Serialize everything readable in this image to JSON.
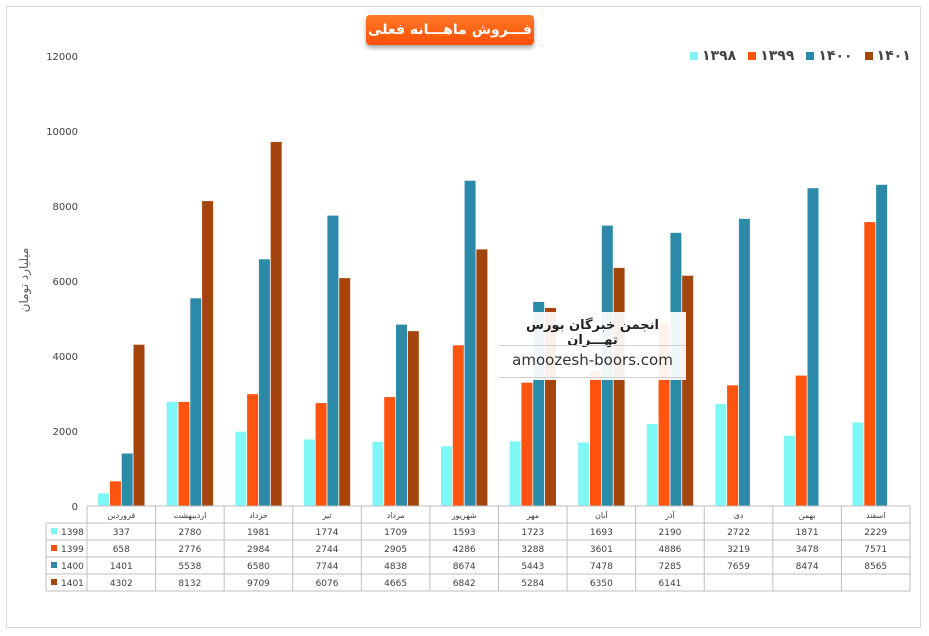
{
  "chart_data": {
    "type": "bar",
    "title": "فـــروش ماهـــانه فعلی",
    "ylabel": "میلیارد تومان",
    "ylim": [
      0,
      12000
    ],
    "yticks": [
      0,
      2000,
      4000,
      6000,
      8000,
      10000,
      12000
    ],
    "grid": false,
    "legend_placement": "top-right",
    "categories": [
      "فروردین",
      "اردیبهشت",
      "خرداد",
      "تیر",
      "مرداد",
      "شهریور",
      "مهر",
      "آبان",
      "آذر",
      "دی",
      "بهمن",
      "اسفند"
    ],
    "series": [
      {
        "name": "1398",
        "legend_label": "۱۳۹۸",
        "color": "#7ff7f7",
        "values": [
          337,
          2780,
          1981,
          1774,
          1709,
          1593,
          1723,
          1693,
          2190,
          2722,
          1871,
          2229
        ]
      },
      {
        "name": "1399",
        "legend_label": "۱۳۹۹",
        "color": "#ff5410",
        "values": [
          658,
          2776,
          2984,
          2744,
          2905,
          4286,
          3288,
          3601,
          4886,
          3219,
          3478,
          7571
        ]
      },
      {
        "name": "1400",
        "legend_label": "۱۴۰۰",
        "color": "#2a8aa8",
        "values": [
          1401,
          5538,
          6580,
          7744,
          4838,
          8674,
          5443,
          7478,
          7285,
          7659,
          8474,
          8565
        ]
      },
      {
        "name": "1401",
        "legend_label": "۱۴۰۱",
        "color": "#a3450d",
        "values": [
          4302,
          8132,
          9709,
          6076,
          4665,
          6842,
          5284,
          6350,
          6141,
          null,
          null,
          null
        ]
      }
    ]
  },
  "watermark": {
    "title": "انجمن خبرگان بورس تهـــران",
    "url": "amoozesh-boors.com"
  }
}
